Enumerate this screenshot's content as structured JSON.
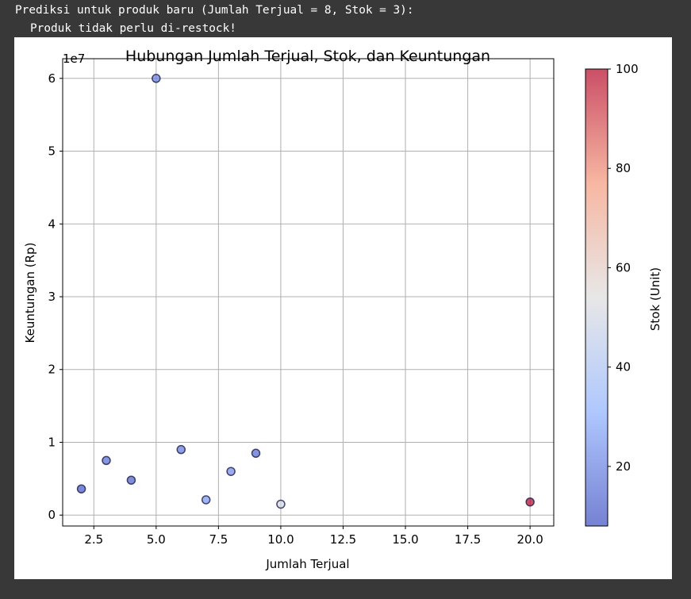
{
  "console": {
    "lines": [
      "Prediksi untuk produk baru (Jumlah Terjual = 8, Stok = 3):",
      "Produk tidak perlu di-restock!"
    ]
  },
  "colors": {
    "background": "#383838",
    "figure": "#ffffff",
    "grid": "#b0b0b0",
    "marker_edge": "#1a1a4a",
    "cmap_low": "#3b4cc0",
    "cmap_mid": "#dddddd",
    "cmap_high": "#b40426"
  },
  "chart_data": {
    "type": "scatter",
    "title": "Hubungan Jumlah Terjual, Stok, dan Keuntungan",
    "xlabel": "Jumlah Terjual",
    "ylabel": "Keuntungan (Rp)",
    "y_offset_label": "1e7",
    "xlim": [
      1.25,
      20.95
    ],
    "ylim": [
      -1500000,
      62700000
    ],
    "xticks": [
      2.5,
      5.0,
      7.5,
      10.0,
      12.5,
      15.0,
      17.5,
      20.0
    ],
    "xtick_labels": [
      "2.5",
      "5.0",
      "7.5",
      "10.0",
      "12.5",
      "15.0",
      "17.5",
      "20.0"
    ],
    "yticks": [
      0,
      10000000,
      20000000,
      30000000,
      40000000,
      50000000,
      60000000
    ],
    "ytick_labels": [
      "0",
      "1",
      "2",
      "3",
      "4",
      "5",
      "6"
    ],
    "grid": true,
    "colormap": "coolwarm",
    "marker_alpha": 0.7,
    "colorbar": {
      "label": "Stok (Unit)",
      "range": [
        8,
        100
      ],
      "ticks": [
        20,
        40,
        60,
        80,
        100
      ],
      "tick_labels": [
        "20",
        "40",
        "60",
        "80",
        "100"
      ]
    },
    "points": [
      {
        "x": 2,
        "y": 3600000,
        "stok": 10
      },
      {
        "x": 3,
        "y": 7500000,
        "stok": 15
      },
      {
        "x": 4,
        "y": 4800000,
        "stok": 12
      },
      {
        "x": 5,
        "y": 60000000,
        "stok": 20
      },
      {
        "x": 6,
        "y": 9000000,
        "stok": 18
      },
      {
        "x": 7,
        "y": 2100000,
        "stok": 25
      },
      {
        "x": 8,
        "y": 6000000,
        "stok": 22
      },
      {
        "x": 9,
        "y": 8500000,
        "stok": 14
      },
      {
        "x": 10,
        "y": 1500000,
        "stok": 50
      },
      {
        "x": 20,
        "y": 1800000,
        "stok": 100
      }
    ]
  }
}
